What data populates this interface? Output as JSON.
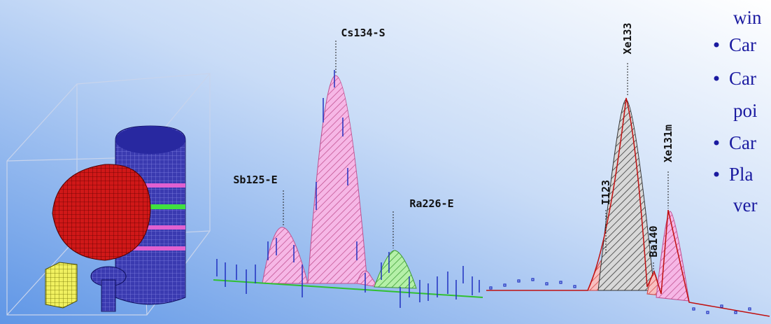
{
  "peak_labels": [
    "Sb125-E",
    "Cs134-S",
    "Ra226-E",
    "I123",
    "Xe133",
    "Ba140",
    "Xe131m"
  ],
  "text_fragments": [
    "win",
    "Car",
    "Car",
    "poi",
    "Car",
    "Pla",
    "ver"
  ]
}
